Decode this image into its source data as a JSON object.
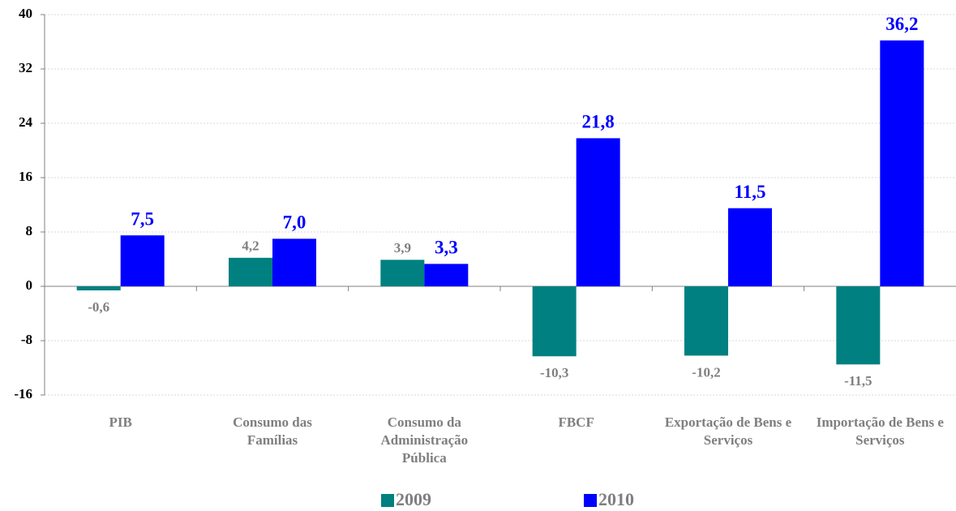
{
  "chart_data": {
    "type": "bar",
    "categories": [
      "PIB",
      "Consumo das Famílias",
      "Consumo da Administração Pública",
      "FBCF",
      "Exportação de Bens e Serviços",
      "Importação de Bens e Serviços"
    ],
    "series": [
      {
        "name": "2009",
        "color": "#008080",
        "values": [
          -0.6,
          4.2,
          3.9,
          -10.3,
          -10.2,
          -11.5
        ],
        "value_labels": [
          "-0,6",
          "4,2",
          "3,9",
          "-10,3",
          "-10,2",
          "-11,5"
        ]
      },
      {
        "name": "2010",
        "color": "#0000ff",
        "values": [
          7.5,
          7.0,
          3.3,
          21.8,
          11.5,
          36.2
        ],
        "value_labels": [
          "7,5",
          "7,0",
          "3,3",
          "21,8",
          "11,5",
          "36,2"
        ]
      }
    ],
    "ylim": [
      -16,
      40
    ],
    "yticks": [
      -16,
      -8,
      0,
      8,
      16,
      24,
      32,
      40
    ],
    "grid": true,
    "legend": "bottom"
  }
}
